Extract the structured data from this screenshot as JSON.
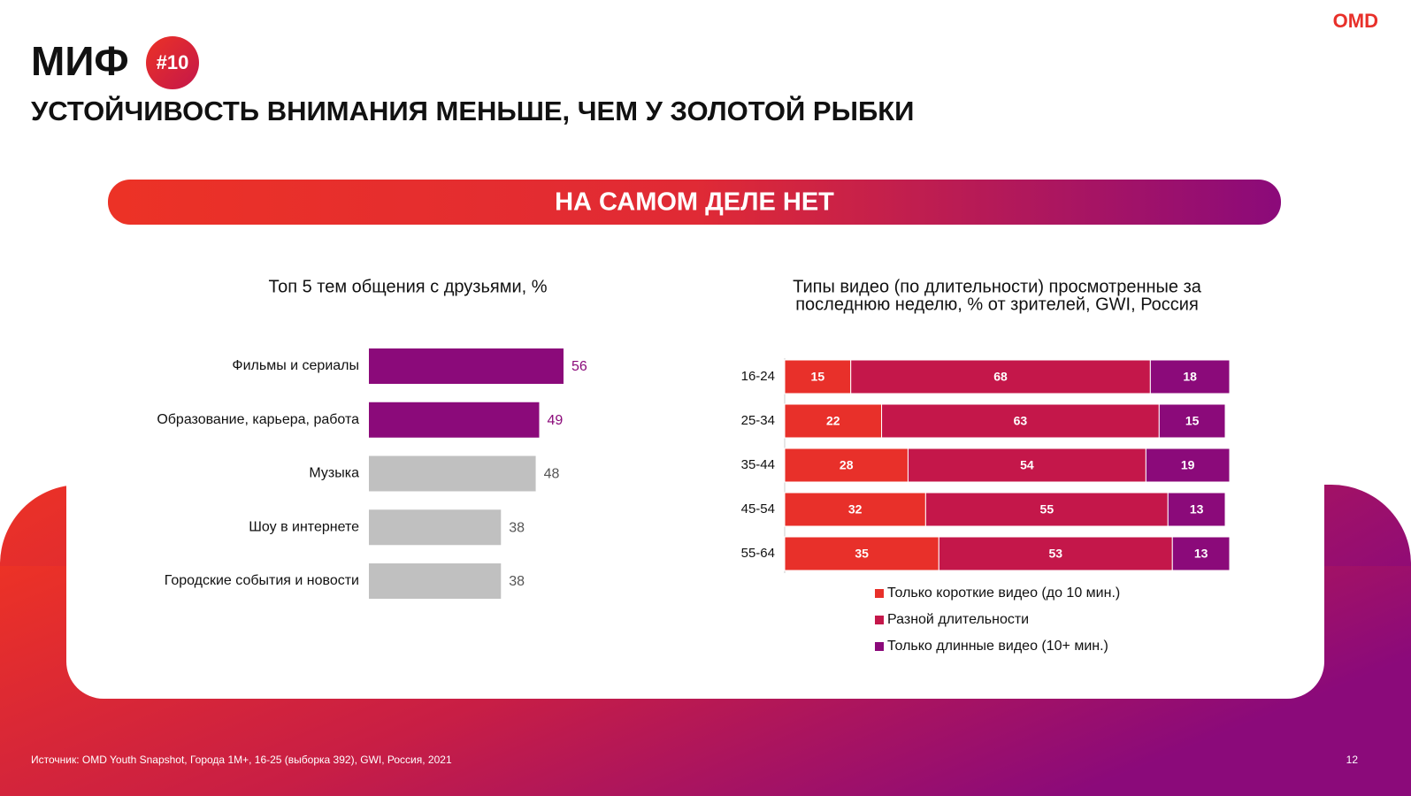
{
  "slide": {
    "title": "МИФ",
    "badge": "#10",
    "subtitle": "УСТОЙЧИВОСТЬ ВНИМАНИЯ МЕНЬШЕ, ЧЕМ У ЗОЛОТОЙ РЫБКИ",
    "banner": "НА САМОМ ДЕЛЕ НЕТ",
    "logo": "OMD",
    "source": "Источник: OMD Youth Snapshot, Города 1М+, 16-25 (выборка 392), GWI, Россия, 2021",
    "page_number": "12"
  },
  "chart_data": [
    {
      "type": "bar",
      "orientation": "horizontal",
      "title": "Топ 5 тем общения с друзьями, %",
      "categories": [
        "Фильмы и сериалы",
        "Образование, карьера, работа",
        "Музыка",
        "Шоу в интернете",
        "Городские события и новости"
      ],
      "values": [
        56,
        49,
        48,
        38,
        38
      ],
      "colors": [
        "#8b0a7a",
        "#8b0a7a",
        "#c0c0c0",
        "#c0c0c0",
        "#c0c0c0"
      ]
    },
    {
      "type": "stacked_bar",
      "orientation": "horizontal",
      "title_lines": [
        "Типы видео (по длительности) просмотренные за",
        "последнюю неделю, % от зрителей, GWI, Россия"
      ],
      "categories": [
        "16-24",
        "25-34",
        "35-44",
        "45-54",
        "55-64"
      ],
      "series": [
        {
          "name": "Только короткие видео (до 10 мин.)",
          "color": "#e8302a",
          "values": [
            15,
            22,
            28,
            32,
            35
          ]
        },
        {
          "name": "Разной длительности",
          "color": "#c4174a",
          "values": [
            68,
            63,
            54,
            55,
            53
          ]
        },
        {
          "name": "Только длинные видео (10+ мин.)",
          "color": "#8b0a7a",
          "values": [
            18,
            15,
            19,
            13,
            13
          ]
        }
      ],
      "legend": "bottom"
    }
  ]
}
